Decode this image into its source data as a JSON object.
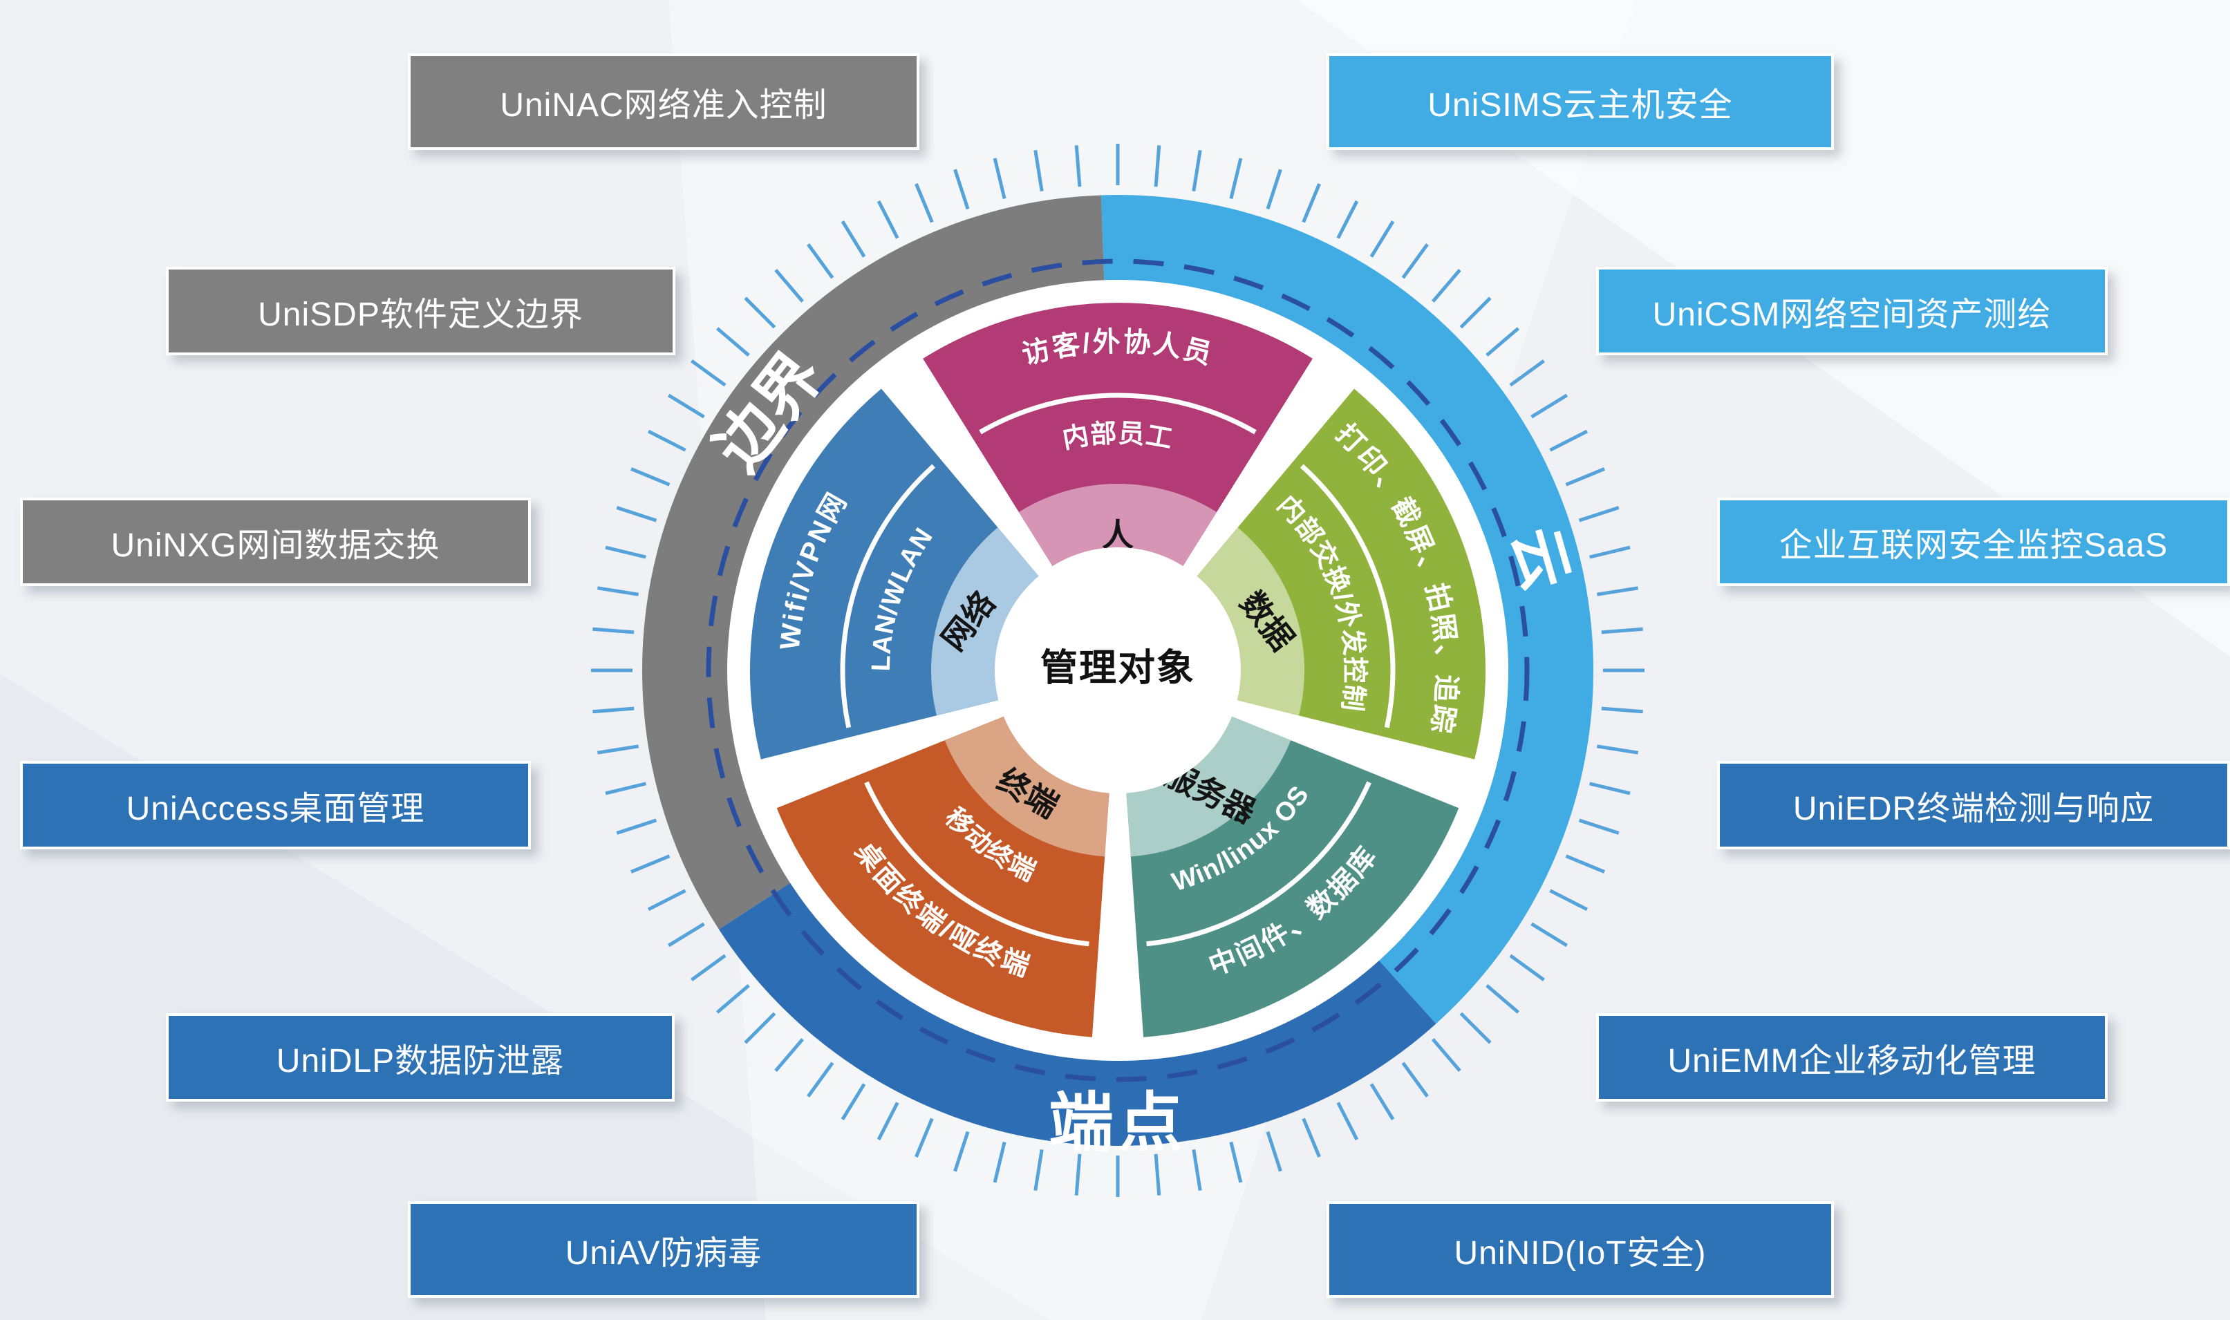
{
  "background": {
    "color": "#eff1f4"
  },
  "center": {
    "label": "管理对象"
  },
  "ring": {
    "tick_color": "#55a3da",
    "dash_color": "#2b4fa0",
    "segments": [
      {
        "id": "boundary",
        "label": "边界",
        "color": "#7d7d7d"
      },
      {
        "id": "cloud",
        "label": "云",
        "color": "#41abe3"
      },
      {
        "id": "endpoint",
        "label": "端点",
        "color": "#2d6db4"
      }
    ]
  },
  "wedges": [
    {
      "id": "people",
      "inner_label": "人",
      "middle_label": "内部员工",
      "outer_label": "访客/外协人员",
      "color": "#b23a75",
      "light_color": "#d795b6"
    },
    {
      "id": "data",
      "inner_label": "数据",
      "middle_label": "内部交换/外发控制",
      "outer_label": "打印、截屏、拍照、追踪",
      "color": "#90b33d",
      "light_color": "#c7d89c"
    },
    {
      "id": "server",
      "inner_label": "服务器",
      "middle_label": "Win/linux OS",
      "outer_label": "中间件、数据库",
      "color": "#4f9086",
      "light_color": "#accec8"
    },
    {
      "id": "terminal",
      "inner_label": "终端",
      "middle_label": "移动终端",
      "outer_label": "桌面终端/哑终端",
      "color": "#c55a28",
      "light_color": "#dba485"
    },
    {
      "id": "network",
      "inner_label": "网络",
      "middle_label": "LAN/WLAN",
      "outer_label": "Wifi/VPN网",
      "color": "#3f7db6",
      "light_color": "#aac9e3"
    }
  ],
  "products": {
    "left": [
      {
        "label": "UniNAC网络准入控制",
        "color": "#808080"
      },
      {
        "label": "UniSDP软件定义边界",
        "color": "#808080"
      },
      {
        "label": "UniNXG网间数据交换",
        "color": "#808080"
      },
      {
        "label": "UniAccess桌面管理",
        "color": "#2e72b6"
      },
      {
        "label": "UniDLP数据防泄露",
        "color": "#2e72b6"
      },
      {
        "label": "UniAV防病毒",
        "color": "#2e72b6"
      }
    ],
    "right": [
      {
        "label": "UniSIMS云主机安全",
        "color": "#41abe3"
      },
      {
        "label": "UniCSM网络空间资产测绘",
        "color": "#41abe3"
      },
      {
        "label": "企业互联网安全监控SaaS",
        "color": "#41abe3"
      },
      {
        "label": "UniEDR终端检测与响应",
        "color": "#2e72b6"
      },
      {
        "label": "UniEMM企业移动化管理",
        "color": "#2e72b6"
      },
      {
        "label": "UniNID(IoT安全)",
        "color": "#2e72b6"
      }
    ]
  }
}
